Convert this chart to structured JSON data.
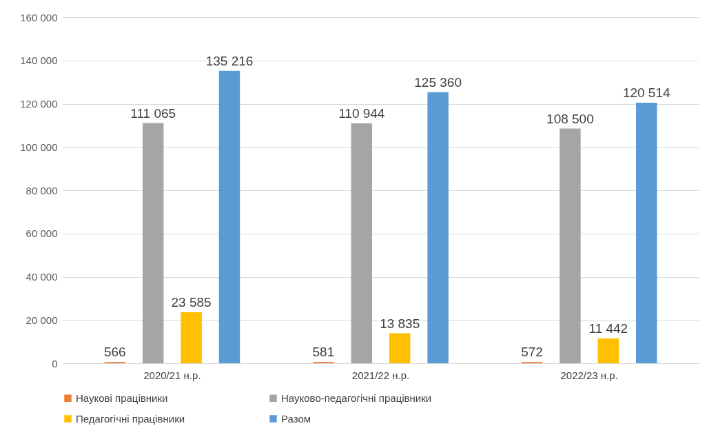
{
  "chart_data": {
    "type": "bar",
    "categories": [
      "2020/21 н.р.",
      "2021/22 н.р.",
      "2022/23 н.р."
    ],
    "series": [
      {
        "name": "Наукові працівники",
        "color": "#ed7d31",
        "values": [
          566,
          581,
          572
        ],
        "value_labels": [
          "566",
          "581",
          "572"
        ]
      },
      {
        "name": "Науково-педагогічні працівники",
        "color": "#a5a5a5",
        "values": [
          111065,
          110944,
          108500
        ],
        "value_labels": [
          "111 065",
          "110 944",
          "108 500"
        ]
      },
      {
        "name": "Педагогічні працівники",
        "color": "#ffc000",
        "values": [
          23585,
          13835,
          11442
        ],
        "value_labels": [
          "23 585",
          "13 835",
          "11 442"
        ]
      },
      {
        "name": "Разом",
        "color": "#5b9bd5",
        "values": [
          135216,
          125360,
          120514
        ],
        "value_labels": [
          "135 216",
          "125 360",
          "120 514"
        ]
      }
    ],
    "ylim": [
      0,
      160000
    ],
    "yticks": [
      0,
      {
        "value": 20000,
        "label": "20 000"
      },
      {
        "value": 40000,
        "label": "40 000"
      },
      {
        "value": 60000,
        "label": "60 000"
      },
      {
        "value": 80000,
        "label": "80 000"
      },
      {
        "value": 100000,
        "label": "100 000"
      },
      {
        "value": 120000,
        "label": "120 000"
      },
      {
        "value": 140000,
        "label": "140 000"
      },
      {
        "value": 160000,
        "label": "160 000"
      }
    ],
    "grid": "y",
    "legend": "bottom"
  }
}
